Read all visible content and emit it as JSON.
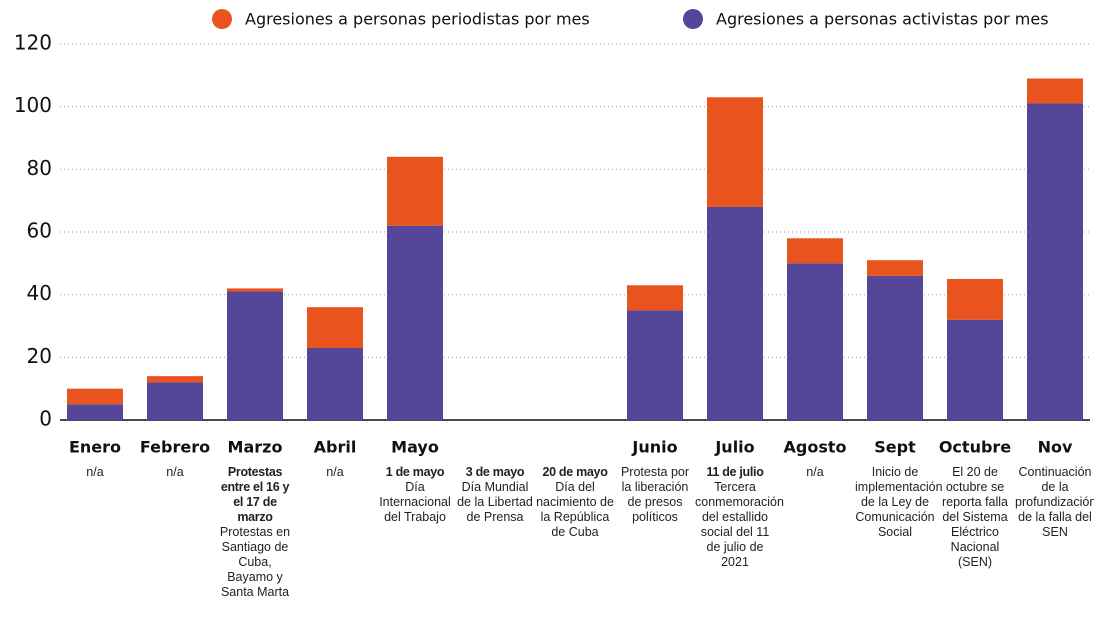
{
  "chart_data": {
    "type": "stacked_bar",
    "categories": [
      "Enero",
      "Febrero",
      "Marzo",
      "Abril",
      "Mayo",
      null,
      null,
      "Junio",
      "Julio",
      "Agosto",
      "Sept",
      "Octubre",
      "Nov"
    ],
    "series": [
      {
        "name": "Agresiones a personas periodistas por mes",
        "color": "#e9531e",
        "values": [
          5,
          2,
          1,
          13,
          22,
          null,
          null,
          8,
          35,
          8,
          5,
          13,
          8
        ]
      },
      {
        "name": "Agresiones a personas activistas por mes",
        "color": "#554699",
        "values": [
          5,
          12,
          41,
          23,
          62,
          null,
          null,
          35,
          68,
          50,
          46,
          32,
          101
        ]
      }
    ],
    "ylim": [
      0,
      120
    ],
    "yticks": [
      0,
      20,
      40,
      60,
      80,
      100,
      120
    ],
    "grid": true,
    "legend": "top",
    "annotations": [
      {
        "text": "n/a"
      },
      {
        "text": "n/a"
      },
      {
        "bold": "Protestas entre el 16 y el 17 de marzo",
        "text": "Protestas en Santiago de Cuba, Bayamo y Santa Marta"
      },
      {
        "text": "n/a"
      },
      {
        "bold": "1 de mayo",
        "text": "Día Internacional del Trabajo"
      },
      {
        "bold": "3 de mayo",
        "text": "Día Mundial de la Libertad de Prensa"
      },
      {
        "bold": "20 de mayo",
        "text": "Día del nacimiento de la República de Cuba"
      },
      {
        "text": "Protesta por la liberación de presos políticos"
      },
      {
        "bold": "11 de julio",
        "text": "Tercera conmemoración del estallido social del 11 de julio de 2021"
      },
      {
        "text": "n/a"
      },
      {
        "text": "Inicio de implementación de la Ley de Comunicación Social"
      },
      {
        "text": "El 20 de octubre se reporta falla del Sistema Eléctrico Nacional (SEN)"
      },
      {
        "text": "Continuación de la profundización de la falla del SEN"
      }
    ]
  }
}
